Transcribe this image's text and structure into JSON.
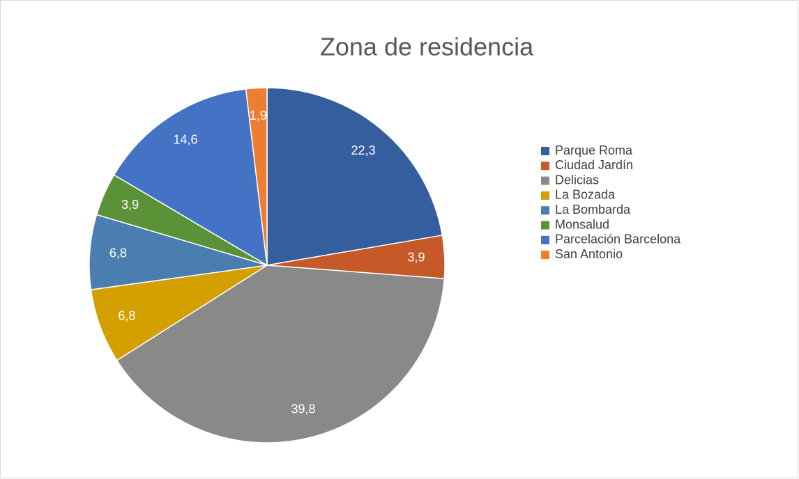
{
  "chart_data": {
    "type": "pie",
    "title": "Zona de residencia",
    "categories": [
      "Parque Roma",
      "Ciudad Jardín",
      "Delicias",
      "La Bozada",
      "La Bombarda",
      "Monsalud",
      "Parcelación Barcelona",
      "San Antonio"
    ],
    "values": [
      22.3,
      3.9,
      39.8,
      6.8,
      6.8,
      3.9,
      14.6,
      1.9
    ],
    "value_labels": [
      "22,3",
      "3,9",
      "39,8",
      "6,8",
      "6,8",
      "3,9",
      "14,6",
      "1,9"
    ],
    "colors": [
      "#355e9f",
      "#c55a28",
      "#898989",
      "#d4a000",
      "#4a7db0",
      "#5b9237",
      "#4472c4",
      "#ed7d31"
    ],
    "legend": "right"
  }
}
